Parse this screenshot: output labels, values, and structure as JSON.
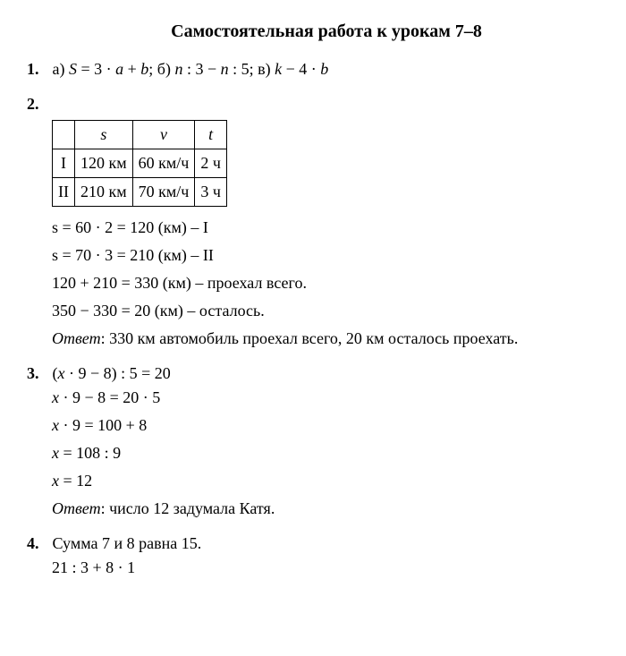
{
  "title": "Самостоятельная работа к урокам 7–8",
  "problem1": {
    "num": "1.",
    "text": "а) S = 3 · a + b; б) n : 3 − n : 5; в) k − 4 · b"
  },
  "problem2": {
    "num": "2.",
    "table": {
      "headers": [
        "",
        "s",
        "v",
        "t"
      ],
      "rows": [
        [
          "I",
          "120 км",
          "60 км/ч",
          "2 ч"
        ],
        [
          "II",
          "210 км",
          "70 км/ч",
          "3 ч"
        ]
      ]
    },
    "lines": [
      "s = 60 · 2 = 120 (км) – I",
      "s = 70 · 3 = 210 (км) – II",
      "120 + 210 = 330 (км) – проехал всего.",
      "350 − 330 = 20 (км) – осталось."
    ],
    "answer_label": "Ответ",
    "answer_text": ": 330 км автомобиль проехал всего, 20 км осталось проехать."
  },
  "problem3": {
    "num": "3.",
    "lines": [
      "(x · 9 − 8) : 5 = 20",
      "x · 9 − 8 = 20 · 5",
      "x · 9 = 100 + 8",
      "x = 108 : 9",
      "x = 12"
    ],
    "answer_label": "Ответ",
    "answer_text": ": число 12 задумала Катя."
  },
  "problem4": {
    "num": "4.",
    "lines": [
      "Сумма 7 и 8 равна 15.",
      "21 : 3 + 8 · 1"
    ]
  }
}
